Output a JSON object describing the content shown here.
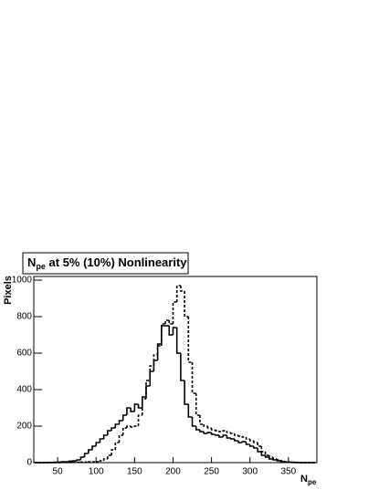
{
  "chart_data": {
    "type": "histogram",
    "title": {
      "main": "N",
      "sub": "pe",
      "rest": " at 5% (10%) Nonlinearity"
    },
    "xlabel": {
      "main": "N",
      "sub": "pe"
    },
    "ylabel": "Pixels",
    "bins": [
      20,
      25,
      30,
      35,
      40,
      45,
      50,
      55,
      60,
      65,
      70,
      75,
      80,
      85,
      90,
      95,
      100,
      105,
      110,
      115,
      120,
      125,
      130,
      135,
      140,
      145,
      150,
      155,
      160,
      165,
      170,
      175,
      180,
      185,
      190,
      195,
      200,
      205,
      210,
      215,
      220,
      225,
      230,
      235,
      240,
      245,
      250,
      255,
      260,
      265,
      270,
      275,
      280,
      285,
      290,
      295,
      300,
      305,
      310,
      315,
      320,
      325,
      330,
      335,
      340,
      345,
      350,
      355,
      360,
      365,
      370,
      375,
      380,
      385
    ],
    "series": [
      {
        "color": "#000000",
        "dashed": false,
        "values": [
          0,
          0,
          0,
          0,
          1,
          2,
          3,
          5,
          4,
          8,
          10,
          15,
          30,
          50,
          70,
          90,
          110,
          130,
          150,
          175,
          190,
          210,
          230,
          260,
          300,
          280,
          320,
          300,
          360,
          420,
          500,
          560,
          650,
          750,
          750,
          700,
          740,
          600,
          450,
          320,
          250,
          200,
          180,
          170,
          160,
          165,
          155,
          150,
          140,
          150,
          135,
          130,
          120,
          110,
          115,
          100,
          90,
          80,
          60,
          40,
          30,
          20,
          15,
          10,
          5,
          3,
          2,
          1,
          0,
          0,
          0,
          0,
          0
        ]
      },
      {
        "color": "#000000",
        "dashed": true,
        "values": [
          0,
          0,
          0,
          0,
          0,
          0,
          0,
          1,
          1,
          1,
          2,
          2,
          3,
          3,
          4,
          4,
          5,
          10,
          20,
          40,
          70,
          110,
          150,
          190,
          200,
          195,
          200,
          260,
          350,
          450,
          530,
          590,
          640,
          760,
          780,
          760,
          880,
          970,
          940,
          800,
          550,
          380,
          260,
          210,
          200,
          190,
          180,
          175,
          170,
          175,
          165,
          160,
          150,
          145,
          140,
          130,
          120,
          110,
          90,
          60,
          40,
          30,
          20,
          15,
          10,
          5,
          3,
          2,
          1,
          0,
          0,
          0,
          0
        ]
      }
    ],
    "xlim": [
      19,
      387
    ],
    "xticks": [
      50,
      100,
      150,
      200,
      250,
      300,
      350
    ],
    "ylim": [
      0,
      1020
    ],
    "yticks": [
      0,
      200,
      400,
      600,
      800,
      1000
    ]
  }
}
